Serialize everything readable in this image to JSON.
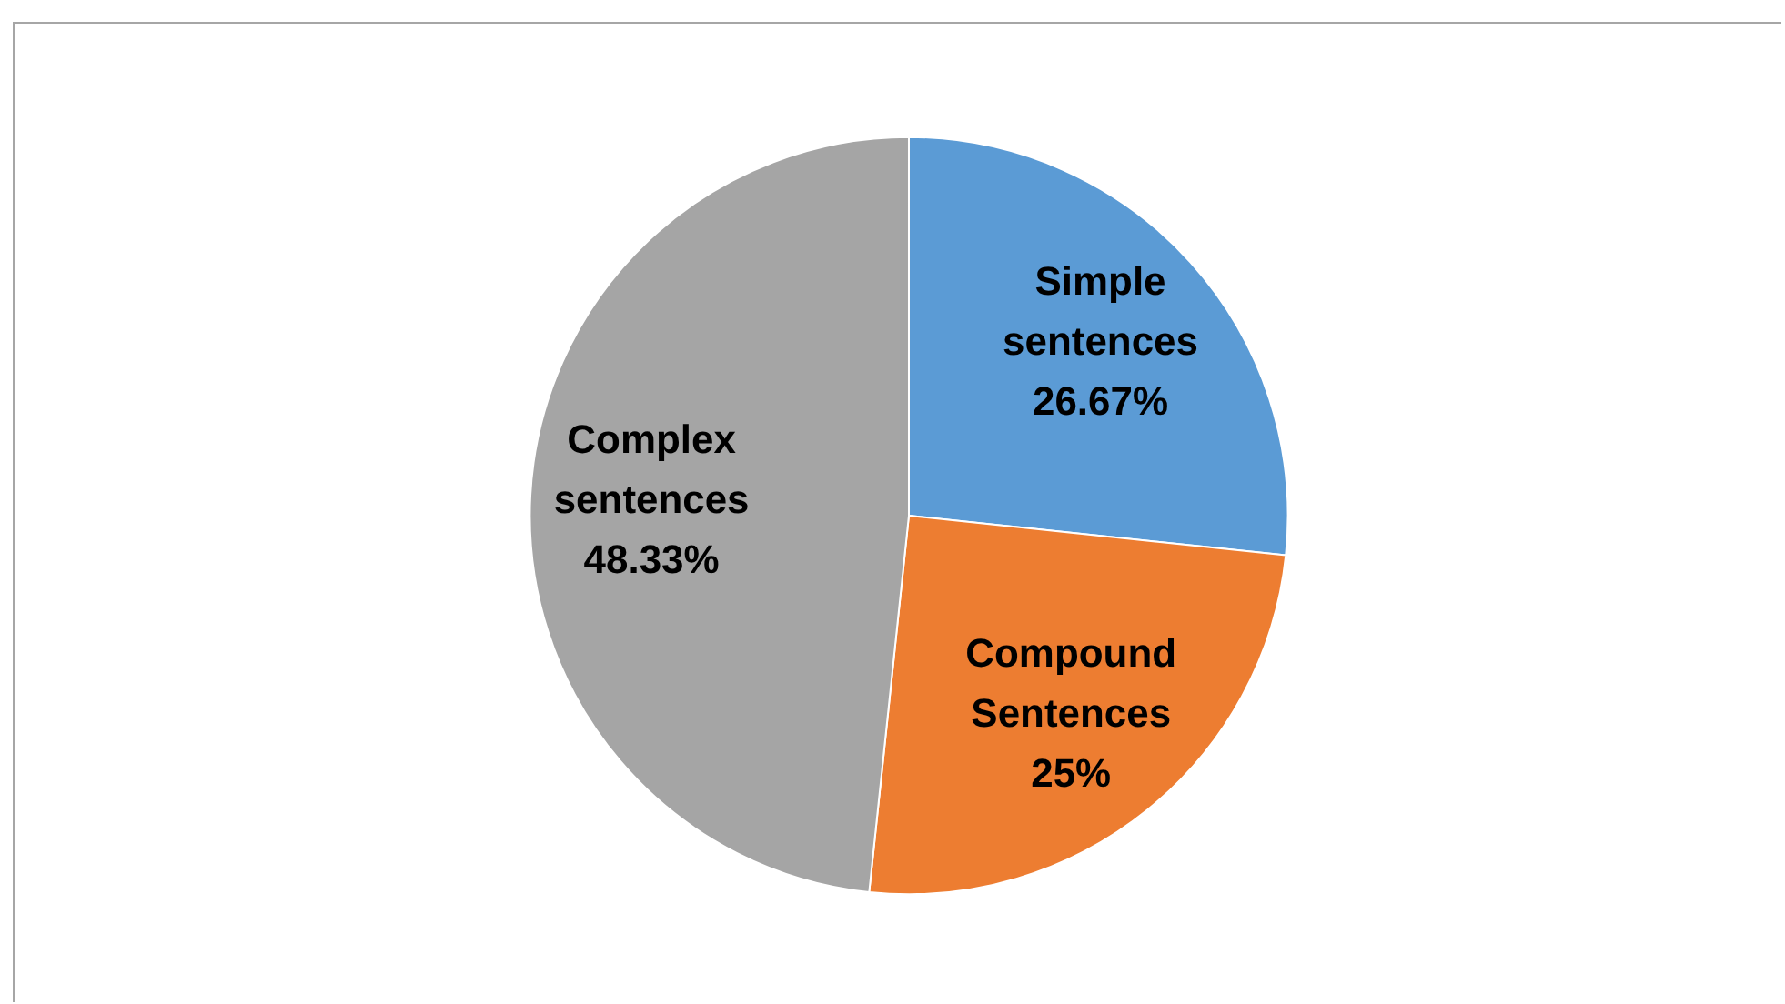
{
  "chart_data": {
    "type": "pie",
    "categories": [
      "Simple sentences",
      "Compound Sentences",
      "Complex sentences"
    ],
    "values": [
      26.67,
      25,
      48.33
    ],
    "colors": [
      "#5b9bd5",
      "#ed7d31",
      "#a5a5a5"
    ],
    "value_labels": [
      "26.67%",
      "25%",
      "48.33%"
    ],
    "legend": false
  }
}
